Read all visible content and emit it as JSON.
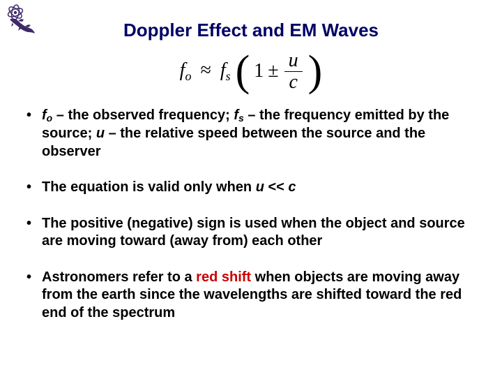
{
  "logo": {
    "name": "gecko-atom-logo",
    "color": "#3d2a6b"
  },
  "title": "Doppler Effect and EM Waves",
  "equation": {
    "lhs_symbol": "f",
    "lhs_sub": "o",
    "approx": "≈",
    "rhs_symbol": "f",
    "rhs_sub": "s",
    "one": "1",
    "pm": "±",
    "frac_num": "u",
    "frac_den": "c"
  },
  "bullets": [
    {
      "segments": [
        {
          "t": "f",
          "cls": "ital"
        },
        {
          "t": "o",
          "cls": "sub"
        },
        {
          "t": " – the observed frequency; "
        },
        {
          "t": "f",
          "cls": "ital"
        },
        {
          "t": "s",
          "cls": "sub"
        },
        {
          "t": " – the frequency emitted by the source; "
        },
        {
          "t": "u",
          "cls": "ital"
        },
        {
          "t": " – the relative speed between the source and the observer"
        }
      ]
    },
    {
      "segments": [
        {
          "t": "The equation is valid only when "
        },
        {
          "t": "u",
          "cls": "ital"
        },
        {
          "t": " << "
        },
        {
          "t": "c",
          "cls": "ital"
        }
      ]
    },
    {
      "segments": [
        {
          "t": "The positive (negative) sign is used when the object and source are moving toward (away from) each other"
        }
      ]
    },
    {
      "segments": [
        {
          "t": "Astronomers refer to a "
        },
        {
          "t": "red shift",
          "cls": "red"
        },
        {
          "t": " when objects are moving away from the earth since the wavelengths are shifted toward the red end of the spectrum"
        }
      ]
    }
  ],
  "style": {
    "title_color": "#000066",
    "red_color": "#cc0000",
    "body_fontsize": 20,
    "title_fontsize": 26,
    "background": "#ffffff"
  }
}
